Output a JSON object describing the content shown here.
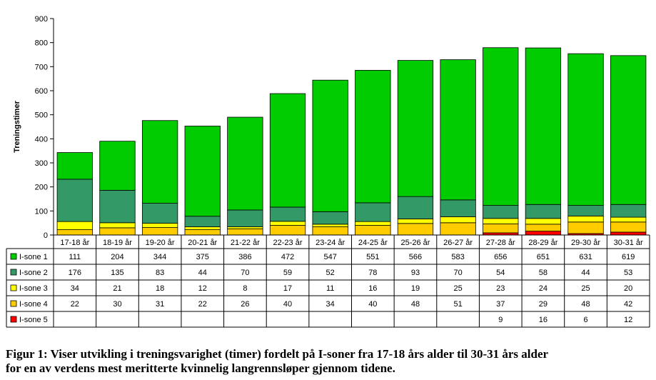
{
  "chart_data": {
    "type": "bar",
    "stacked": true,
    "categories": [
      "17-18 år",
      "18-19 år",
      "19-20 år",
      "20-21 år",
      "21-22 år",
      "22-23 år",
      "23-24 år",
      "24-25 år",
      "25-26 år",
      "26-27 år",
      "27-28 år",
      "28-29 år",
      "29-30 år",
      "30-31 år"
    ],
    "series": [
      {
        "name": "I-sone 1",
        "color": "#00cc00",
        "values": [
          111,
          204,
          344,
          375,
          386,
          472,
          547,
          551,
          566,
          583,
          656,
          651,
          631,
          619
        ]
      },
      {
        "name": "I-sone 2",
        "color": "#339966",
        "values": [
          176,
          135,
          83,
          44,
          70,
          59,
          52,
          78,
          93,
          70,
          54,
          58,
          44,
          53
        ]
      },
      {
        "name": "I-sone 3",
        "color": "#ffff00",
        "values": [
          34,
          21,
          18,
          12,
          8,
          17,
          11,
          16,
          19,
          25,
          23,
          24,
          25,
          20
        ]
      },
      {
        "name": "I-sone 4",
        "color": "#ffcc00",
        "values": [
          22,
          30,
          31,
          22,
          26,
          40,
          34,
          40,
          48,
          51,
          37,
          29,
          48,
          42
        ]
      },
      {
        "name": "I-sone 5",
        "color": "#ff0000",
        "values": [
          null,
          null,
          null,
          null,
          null,
          null,
          null,
          null,
          null,
          null,
          9,
          16,
          6,
          12
        ]
      }
    ],
    "ylabel": "Treningstimer",
    "ylim": [
      0,
      900
    ],
    "yticks": [
      0,
      100,
      200,
      300,
      400,
      500,
      600,
      700,
      800,
      900
    ],
    "grid": false,
    "legend": "data-table-left"
  },
  "caption": {
    "line1": "Figur 1: Viser utvikling i treningsvarighet (timer) fordelt på I-soner fra 17-18 års alder til 30-31 års alder",
    "line2": "for en av verdens mest meritterte kvinnelig langrennsløper gjennom tidene."
  }
}
